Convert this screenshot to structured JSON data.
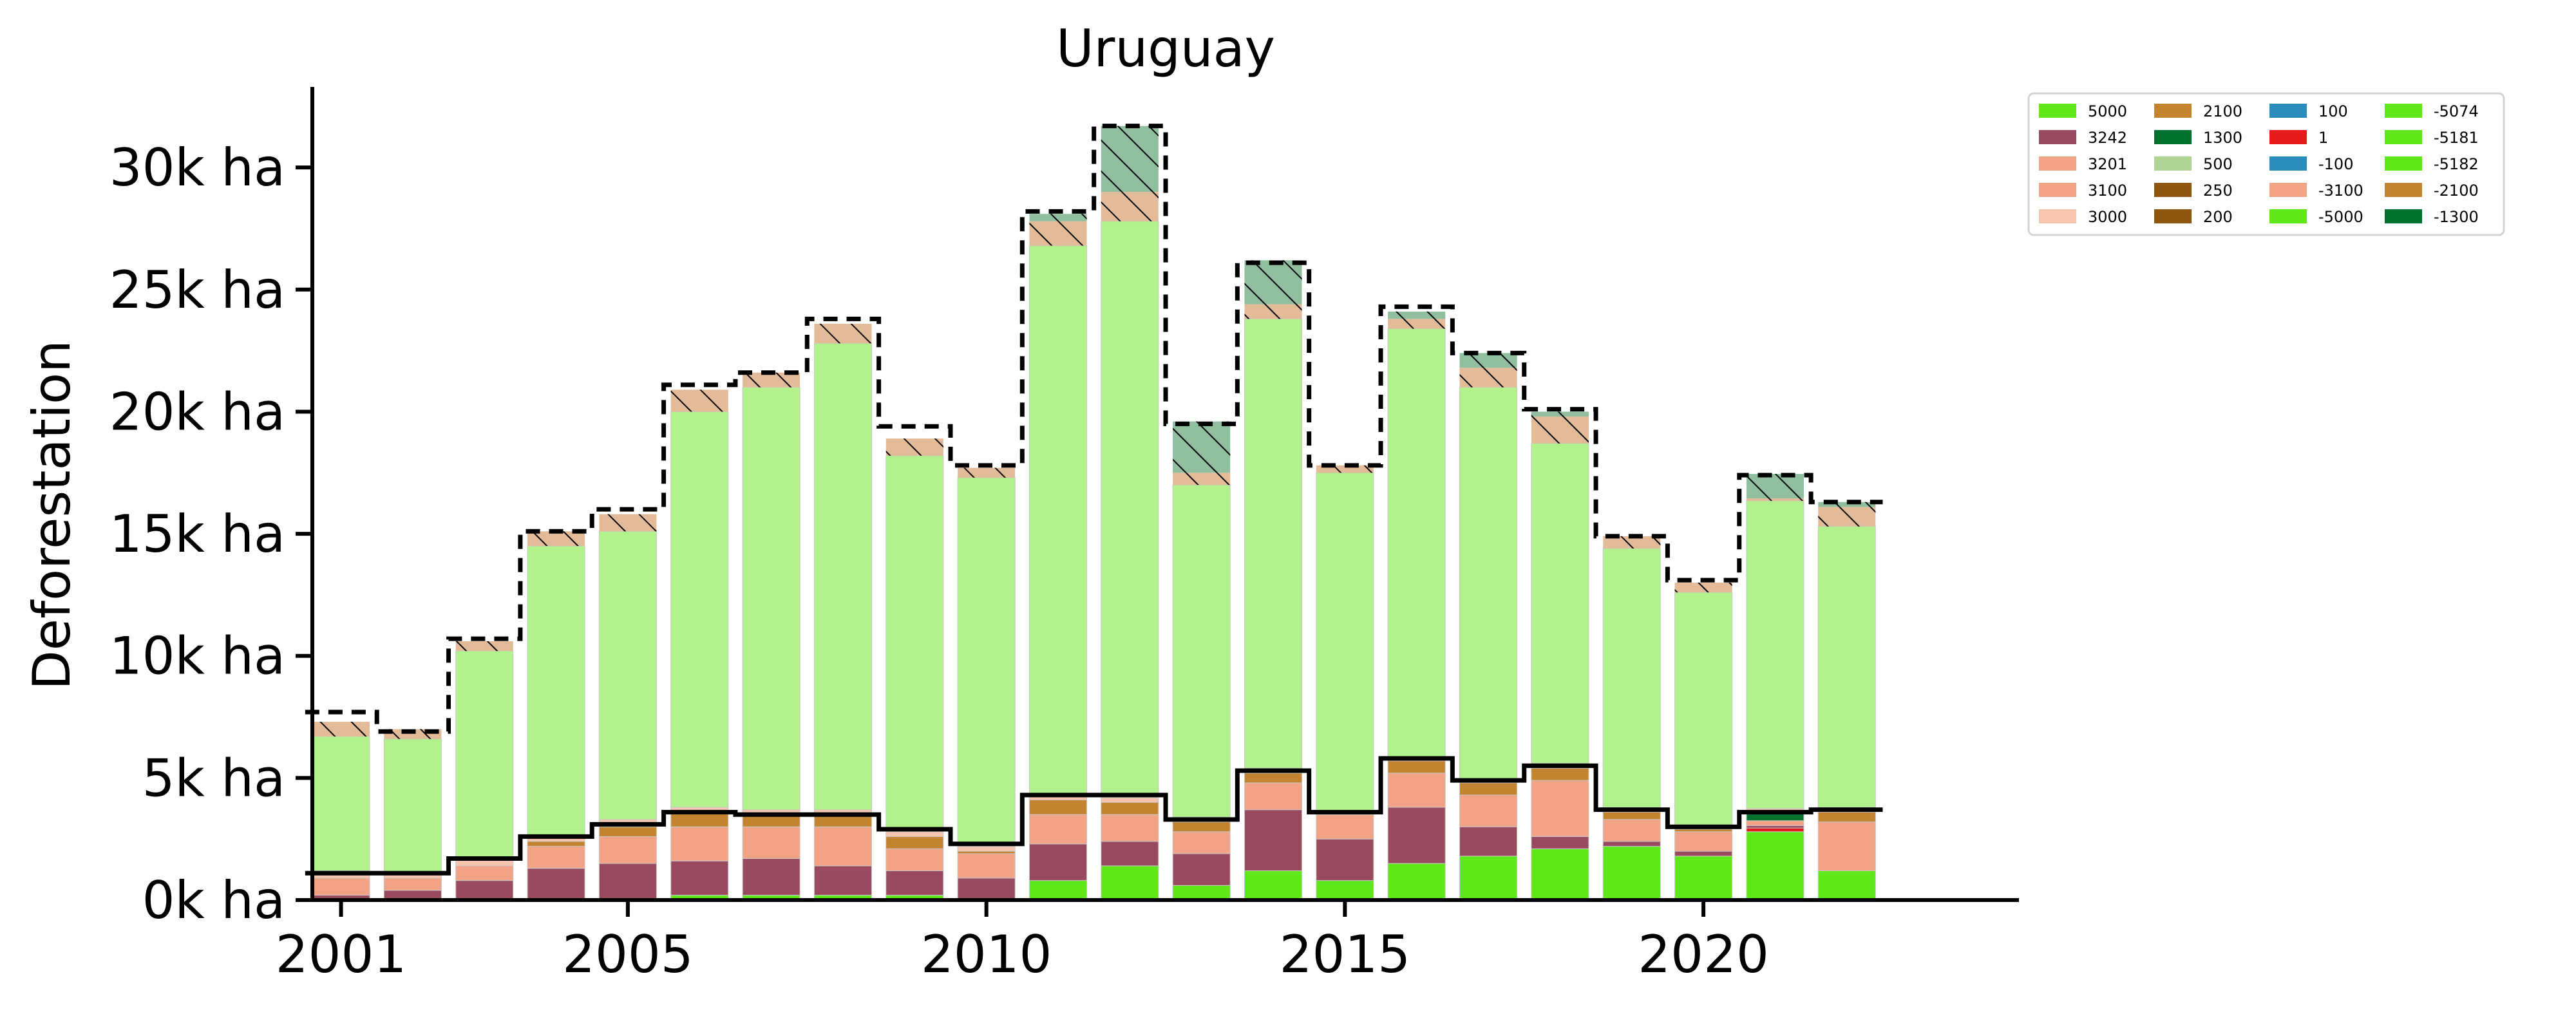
{
  "chart_data": {
    "type": "bar",
    "stacked": true,
    "title": "Uruguay",
    "xlabel": "",
    "ylabel": "Deforestation",
    "unit": "ha",
    "xlim": [
      2000.6,
      2024.4
    ],
    "ylim": [
      0,
      33300
    ],
    "x_ticks": [
      2001,
      2005,
      2010,
      2015,
      2020
    ],
    "y_ticks": [
      0,
      5000,
      10000,
      15000,
      20000,
      25000,
      30000
    ],
    "y_tick_labels": [
      "0k ha",
      "5k ha",
      "10k ha",
      "15k ha",
      "20k ha",
      "25k ha",
      "30k ha"
    ],
    "years": [
      2001,
      2002,
      2003,
      2004,
      2005,
      2006,
      2007,
      2008,
      2009,
      2010,
      2011,
      2012,
      2013,
      2014,
      2015,
      2016,
      2017,
      2018,
      2019,
      2020,
      2021,
      2022
    ],
    "series": [
      {
        "name": "5000",
        "color": "#5ee81a",
        "values": [
          0,
          0,
          0,
          0,
          0,
          200,
          200,
          200,
          200,
          0,
          800,
          1400,
          600,
          1200,
          800,
          1500,
          1800,
          2100,
          2200,
          1800,
          2800,
          1200
        ]
      },
      {
        "name": "1",
        "color": "#e41a1c",
        "values": [
          0,
          0,
          0,
          0,
          0,
          0,
          0,
          0,
          0,
          0,
          0,
          0,
          0,
          0,
          0,
          0,
          0,
          0,
          0,
          0,
          150,
          0
        ]
      },
      {
        "name": "3242",
        "color": "#994a5e",
        "values": [
          200,
          400,
          800,
          1300,
          1500,
          1400,
          1500,
          1200,
          1000,
          900,
          1500,
          1000,
          1300,
          2500,
          1700,
          2300,
          1200,
          500,
          200,
          200,
          100,
          0
        ]
      },
      {
        "name": "3201",
        "color": "#f2a385",
        "values": [
          700,
          500,
          600,
          900,
          1100,
          1400,
          1300,
          1600,
          900,
          1000,
          1200,
          1100,
          900,
          1100,
          1000,
          1400,
          1300,
          2300,
          900,
          800,
          200,
          2000
        ]
      },
      {
        "name": "1300",
        "color": "#02702f",
        "values": [
          0,
          0,
          0,
          0,
          0,
          0,
          0,
          0,
          0,
          0,
          0,
          0,
          0,
          0,
          0,
          0,
          0,
          0,
          0,
          0,
          300,
          0
        ]
      },
      {
        "name": "2100",
        "color": "#c4832e",
        "values": [
          0,
          0,
          0,
          200,
          400,
          600,
          500,
          500,
          500,
          100,
          600,
          500,
          400,
          400,
          0,
          500,
          500,
          500,
          300,
          100,
          100,
          400
        ]
      },
      {
        "name": "3000",
        "color": "#f7c4b0",
        "values": [
          300,
          200,
          300,
          200,
          300,
          200,
          200,
          200,
          200,
          200,
          200,
          200,
          200,
          200,
          100,
          100,
          100,
          200,
          200,
          100,
          100,
          200
        ]
      },
      {
        "name": "250",
        "color": "#b1f28c",
        "values": [
          5500,
          5500,
          8500,
          11900,
          11800,
          16200,
          17300,
          19100,
          15400,
          15100,
          22500,
          23600,
          13600,
          18400,
          13900,
          17600,
          16100,
          13100,
          10600,
          9600,
          12600,
          11500
        ]
      }
    ],
    "hatched_layers": [
      {
        "name": "",
        "color": "#e3bb98",
        "hatch": "/",
        "values": [
          600,
          400,
          400,
          600,
          700,
          900,
          600,
          800,
          700,
          400,
          1000,
          1200,
          500,
          600,
          300,
          400,
          800,
          1100,
          500,
          400,
          100,
          800
        ]
      },
      {
        "name": "",
        "color": "#8fbf9e",
        "hatch": "/",
        "values": [
          0,
          0,
          0,
          0,
          0,
          0,
          0,
          0,
          0,
          0,
          300,
          2700,
          2100,
          1800,
          0,
          300,
          600,
          200,
          0,
          0,
          1000,
          200
        ]
      }
    ],
    "solid_line": [
      1100,
      1100,
      1700,
      2600,
      3100,
      3600,
      3500,
      3500,
      2900,
      2300,
      4300,
      4300,
      3300,
      5300,
      3600,
      5800,
      4900,
      5500,
      3700,
      3000,
      3600,
      3700
    ],
    "dashed_line": [
      7700,
      6900,
      10700,
      15100,
      16000,
      21100,
      21600,
      23800,
      19400,
      17800,
      28200,
      31700,
      19500,
      26100,
      17800,
      24300,
      22400,
      20100,
      14900,
      13100,
      17400,
      16300
    ],
    "legend": {
      "placement": "top-right outside",
      "columns": [
        [
          {
            "label": "5000",
            "color": "#5ee81a"
          },
          {
            "label": "3242",
            "color": "#994a5e"
          },
          {
            "label": "3201",
            "color": "#f2a385"
          },
          {
            "label": "3100",
            "color": "#f2a385"
          },
          {
            "label": "3000",
            "color": "#f7c4b0"
          }
        ],
        [
          {
            "label": "2100",
            "color": "#c4832e"
          },
          {
            "label": "1300",
            "color": "#02702f"
          },
          {
            "label": "500",
            "color": "#b1d494"
          },
          {
            "label": "250",
            "color": "#8f5610"
          },
          {
            "label": "200",
            "color": "#8f5610"
          }
        ],
        [
          {
            "label": "100",
            "color": "#2b8cbe"
          },
          {
            "label": "1",
            "color": "#e41a1c"
          },
          {
            "label": "-100",
            "color": "#2b8cbe"
          },
          {
            "label": "-3100",
            "color": "#f2a385"
          },
          {
            "label": "-5000",
            "color": "#5ee81a"
          }
        ],
        [
          {
            "label": "-5074",
            "color": "#5ee81a"
          },
          {
            "label": "-5181",
            "color": "#5ee81a"
          },
          {
            "label": "-5182",
            "color": "#5ee81a"
          },
          {
            "label": "-2100",
            "color": "#c4832e"
          },
          {
            "label": "-1300",
            "color": "#02702f"
          }
        ]
      ]
    }
  }
}
